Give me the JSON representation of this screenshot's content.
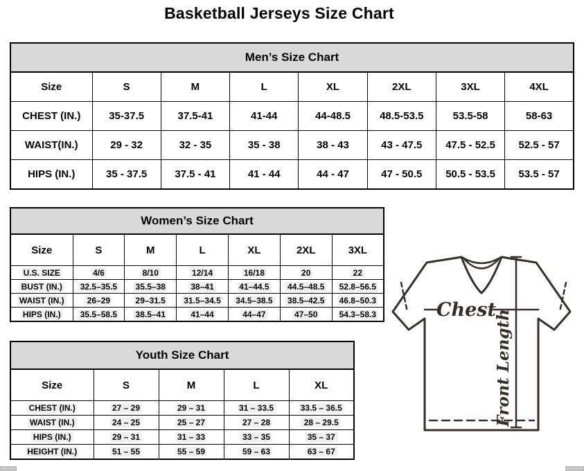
{
  "page_title": "Basketball Jerseys Size Chart",
  "colors": {
    "caption_bg": "#d9d9d9",
    "border": "#000000",
    "diagram_stroke": "#352e2b"
  },
  "mens_table": {
    "caption": "Men’s Size Chart",
    "header": [
      "Size",
      "S",
      "M",
      "L",
      "XL",
      "2XL",
      "3XL",
      "4XL"
    ],
    "rows": [
      [
        "CHEST (IN.)",
        "35-37.5",
        "37.5-41",
        "41-44",
        "44-48.5",
        "48.5-53.5",
        "53.5-58",
        "58-63"
      ],
      [
        "WAIST(IN.)",
        "29 - 32",
        "32 - 35",
        "35 - 38",
        "38 - 43",
        "43 - 47.5",
        "47.5 - 52.5",
        "52.5 - 57"
      ],
      [
        "HIPS (IN.)",
        "35 - 37.5",
        "37.5 - 41",
        "41 - 44",
        "44 - 47",
        "47 - 50.5",
        "50.5 - 53.5",
        "53.5 - 57"
      ]
    ]
  },
  "womens_table": {
    "caption": "Women’s Size Chart",
    "header": [
      "Size",
      "S",
      "M",
      "L",
      "XL",
      "2XL",
      "3XL"
    ],
    "rows": [
      [
        "U.S. SIZE",
        "4/6",
        "8/10",
        "12/14",
        "16/18",
        "20",
        "22"
      ],
      [
        "BUST (IN.)",
        "32.5–35.5",
        "35.5–38",
        "38–41",
        "41–44.5",
        "44.5–48.5",
        "52.8–56.5"
      ],
      [
        "WAIST (IN.)",
        "26–29",
        "29–31.5",
        "31.5–34.5",
        "34.5–38.5",
        "38.5–42.5",
        "46.8–50.3"
      ],
      [
        "HIPS (IN.)",
        "35.5–58.5",
        "38.5–41",
        "41–44",
        "44–47",
        "47–50",
        "54.3–58.3"
      ]
    ]
  },
  "youth_table": {
    "caption": "Youth Size Chart",
    "header": [
      "Size",
      "S",
      "M",
      "L",
      "XL"
    ],
    "rows": [
      [
        "CHEST (IN.)",
        "27 – 29",
        "29 – 31",
        "31 – 33.5",
        "33.5 – 36.5"
      ],
      [
        "WAIST (IN.)",
        "24 – 25",
        "25 – 27",
        "27 – 28",
        "28 – 29.5"
      ],
      [
        "HIPS (IN.)",
        "29 – 31",
        "31 – 33",
        "33 – 35",
        "35 – 37"
      ],
      [
        "HEIGHT (IN.)",
        "51 – 55",
        "55 – 59",
        "59 – 63",
        "63 – 67"
      ]
    ]
  },
  "diagram": {
    "chest_label": "Chest",
    "front_length_label": "Front Length"
  }
}
